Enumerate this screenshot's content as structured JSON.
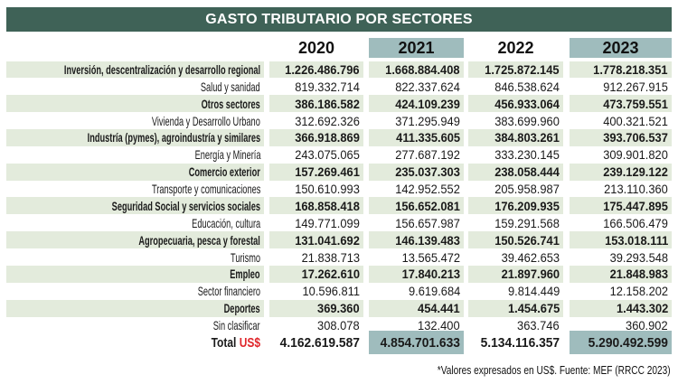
{
  "title": "GASTO TRIBUTARIO POR SECTORES",
  "colors": {
    "title_bg": "#3f6257",
    "highlight_col": "#9fbcbd",
    "row_shade": "#e3ebdc",
    "currency_red": "#e0262b"
  },
  "columns": [
    "2020",
    "2021",
    "2022",
    "2023"
  ],
  "rows": [
    {
      "label": "Inversión, descentralización y desarrollo regional",
      "values": [
        "1.226.486.796",
        "1.668.884.408",
        "1.725.872.145",
        "1.778.218.351"
      ]
    },
    {
      "label": "Salud y sanidad",
      "values": [
        "819.332.714",
        "822.337.624",
        "846.538.624",
        "912.267.915"
      ]
    },
    {
      "label": "Otros sectores",
      "values": [
        "386.186.582",
        "424.109.239",
        "456.933.064",
        "473.759.551"
      ]
    },
    {
      "label": "Vivienda y Desarrollo Urbano",
      "values": [
        "312.692.326",
        "371.295.949",
        "383.699.960",
        "400.321.521"
      ]
    },
    {
      "label": "Industría (pymes), agroindustría y similares",
      "values": [
        "366.918.869",
        "411.335.605",
        "384.803.261",
        "393.706.537"
      ]
    },
    {
      "label": "Energía y Minería",
      "values": [
        "243.075.065",
        "277.687.192",
        "333.230.145",
        "309.901.820"
      ]
    },
    {
      "label": "Comercio exterior",
      "values": [
        "157.269.461",
        "235.037.303",
        "238.058.444",
        "239.129.122"
      ]
    },
    {
      "label": "Transporte y comunicaciones",
      "values": [
        "150.610.993",
        "142.952.552",
        "205.958.987",
        "213.110.360"
      ]
    },
    {
      "label": "Seguridad Social y servicios sociales",
      "values": [
        "168.858.418",
        "156.652.081",
        "176.209.935",
        "175.447.895"
      ]
    },
    {
      "label": "Educación, cultura",
      "values": [
        "149.771.099",
        "156.657.987",
        "159.291.568",
        "166.506.479"
      ]
    },
    {
      "label": "Agropecuaria, pesca y forestal",
      "values": [
        "131.041.692",
        "146.139.483",
        "150.526.741",
        "153.018.111"
      ]
    },
    {
      "label": "Turismo",
      "values": [
        "21.838.713",
        "13.565.472",
        "39.462.653",
        "39.293.548"
      ]
    },
    {
      "label": "Empleo",
      "values": [
        "17.262.610",
        "17.840.213",
        "21.897.960",
        "21.848.983"
      ]
    },
    {
      "label": "Sector financiero",
      "values": [
        "10.596.811",
        "9.619.684",
        "9.814.449",
        "12.158.202"
      ]
    },
    {
      "label": "Deportes",
      "values": [
        "369.360",
        "454.441",
        "1.454.675",
        "1.443.302"
      ]
    },
    {
      "label": "Sin clasificar",
      "values": [
        "308.078",
        "132.400",
        "363.746",
        "360.902"
      ]
    }
  ],
  "total": {
    "label": "Total",
    "currency": "US$",
    "values": [
      "4.162.619.587",
      "4.854.701.633",
      "5.134.116.357",
      "5.290.492.599"
    ]
  },
  "footnote": "*Valores expresados en US$. Fuente: MEF (RRCC 2023)"
}
